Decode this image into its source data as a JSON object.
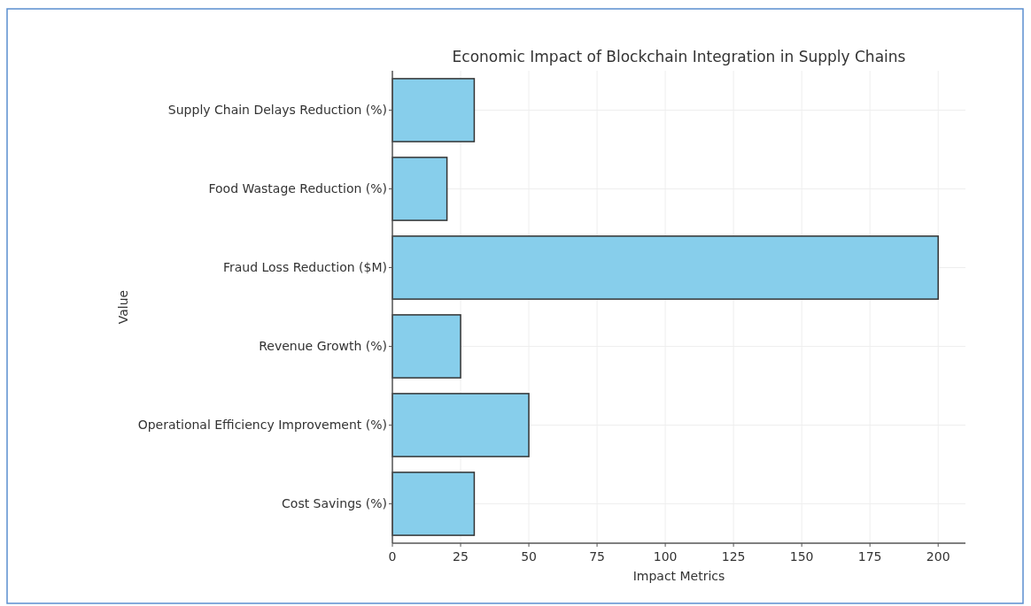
{
  "chart_data": {
    "type": "bar",
    "orientation": "horizontal",
    "title": "Economic Impact of Blockchain Integration in Supply Chains",
    "xlabel": "Impact Metrics",
    "ylabel": "Value",
    "categories": [
      "Supply Chain Delays Reduction (%)",
      "Food Wastage Reduction (%)",
      "Fraud Loss Reduction ($M)",
      "Revenue Growth (%)",
      "Operational Efficiency Improvement (%)",
      "Cost Savings (%)"
    ],
    "values": [
      30,
      20,
      200,
      25,
      50,
      30
    ],
    "color": "#87ceeb",
    "xlim": [
      0,
      210
    ],
    "xticks": [
      0,
      25,
      50,
      75,
      100,
      125,
      150,
      175,
      200
    ],
    "grid": true
  }
}
